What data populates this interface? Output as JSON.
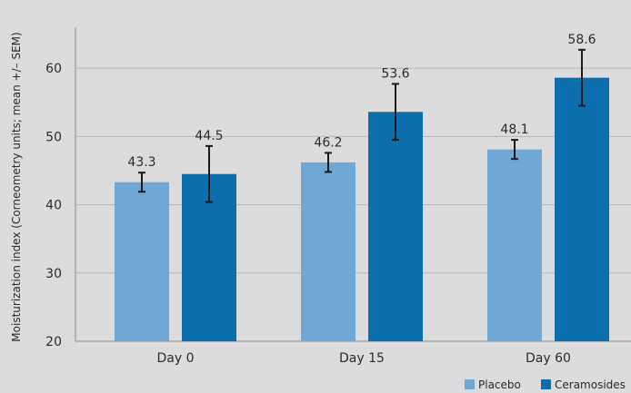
{
  "chart_data": {
    "type": "bar",
    "categories": [
      "Day 0",
      "Day 15",
      "Day 60"
    ],
    "series": [
      {
        "name": "Placebo",
        "values": [
          43.3,
          46.2,
          48.1
        ],
        "error": [
          1.4,
          1.4,
          1.4
        ],
        "color": "#6fa8d4"
      },
      {
        "name": "Ceramosides",
        "values": [
          44.5,
          53.6,
          58.6
        ],
        "error": [
          4.1,
          4.1,
          4.1
        ],
        "color": "#0b6fae"
      }
    ],
    "data_labels": [
      [
        "43.3",
        "46.2",
        "48.1"
      ],
      [
        "44.5",
        "53.6",
        "58.6"
      ]
    ],
    "ylabel": "Moisturization index (Corneometry units; mean +/– SEM)",
    "xlabel": "",
    "yticks": [
      20,
      30,
      40,
      50,
      60
    ],
    "ylim": [
      20,
      66
    ],
    "grid": true,
    "legend_position": "bottom-right",
    "colors": {
      "background": "#dcdcdc",
      "grid": "#b5b5b5",
      "axis": "#8a8a8a",
      "error_bar": "#1a1a1a"
    }
  }
}
